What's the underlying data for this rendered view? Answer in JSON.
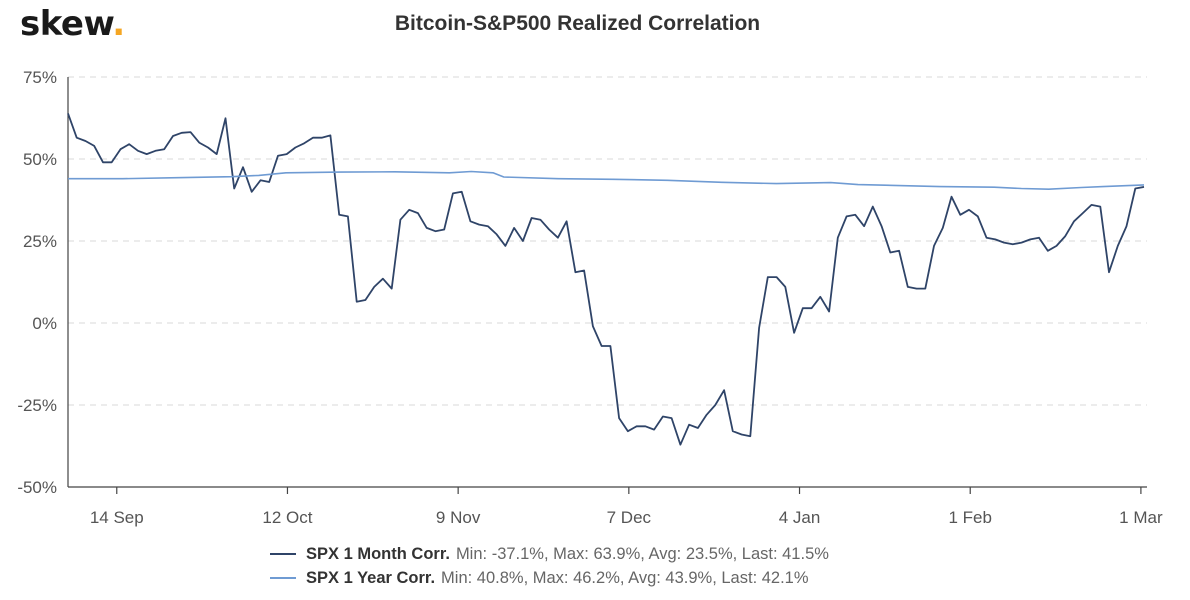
{
  "brand": {
    "logo_text": "skew",
    "logo_dot": "."
  },
  "colors": {
    "month_series": "#2f4468",
    "year_series": "#6f9bd3",
    "logo_dot": "#f5a623"
  },
  "chart_data": {
    "type": "line",
    "title": "Bitcoin-S&P500 Realized Correlation",
    "xlabel": "",
    "ylabel": "",
    "ylim": [
      -50,
      75
    ],
    "y_ticks": [
      -50,
      -25,
      0,
      25,
      50,
      75
    ],
    "y_tick_labels": [
      "-50%",
      "-25%",
      "0%",
      "25%",
      "50%",
      "75%"
    ],
    "x_tick_labels": [
      "14 Sep",
      "12 Oct",
      "9 Nov",
      "7 Dec",
      "4 Jan",
      "1 Feb",
      "1 Mar"
    ],
    "x_tick_index": [
      8,
      36,
      64,
      92,
      120,
      148,
      176
    ],
    "x_count": 178,
    "grid": true,
    "legend_position": "bottom",
    "series": [
      {
        "name": "SPX 1 Month Corr.",
        "stats": "Min: -37.1%, Max: 63.9%, Avg: 23.5%, Last: 41.5%",
        "points": [
          [
            0,
            63.9
          ],
          [
            2,
            56.5
          ],
          [
            4,
            55.5
          ],
          [
            6,
            54
          ],
          [
            8,
            49
          ],
          [
            10,
            49
          ],
          [
            12,
            53
          ],
          [
            14,
            54.5
          ],
          [
            16,
            52.5
          ],
          [
            18,
            51.5
          ],
          [
            20,
            52.5
          ],
          [
            22,
            53
          ],
          [
            24,
            57
          ],
          [
            26,
            58
          ],
          [
            28,
            58.2
          ],
          [
            30,
            55
          ],
          [
            32,
            53.5
          ],
          [
            34,
            51.5
          ],
          [
            36,
            62.4
          ],
          [
            38,
            41
          ],
          [
            40,
            47.5
          ],
          [
            42,
            40
          ],
          [
            44,
            43.5
          ],
          [
            46,
            43
          ],
          [
            48,
            51
          ],
          [
            50,
            51.5
          ],
          [
            52,
            53.5
          ],
          [
            54,
            54.8
          ],
          [
            56,
            56.5
          ],
          [
            58,
            56.5
          ],
          [
            60,
            57.2
          ],
          [
            62,
            33
          ],
          [
            64,
            32.5
          ],
          [
            66,
            6.5
          ],
          [
            68,
            7
          ],
          [
            70,
            11
          ],
          [
            72,
            13.5
          ],
          [
            74,
            10.5
          ],
          [
            76,
            31.5
          ],
          [
            78,
            34.5
          ],
          [
            80,
            33.5
          ],
          [
            82,
            29
          ],
          [
            84,
            28
          ],
          [
            86,
            28.5
          ],
          [
            88,
            39.5
          ],
          [
            90,
            40
          ],
          [
            92,
            31
          ],
          [
            94,
            30
          ],
          [
            96,
            29.5
          ],
          [
            98,
            27
          ],
          [
            100,
            23.5
          ],
          [
            102,
            29
          ],
          [
            104,
            25
          ],
          [
            106,
            32
          ],
          [
            108,
            31.5
          ],
          [
            110,
            28.5
          ],
          [
            112,
            26
          ],
          [
            114,
            31
          ],
          [
            116,
            15.5
          ],
          [
            118,
            16
          ],
          [
            120,
            -1
          ],
          [
            122,
            -7
          ],
          [
            124,
            -7
          ],
          [
            126,
            -29
          ],
          [
            128,
            -33
          ],
          [
            130,
            -31.5
          ],
          [
            132,
            -31.5
          ],
          [
            134,
            -32.5
          ],
          [
            136,
            -28.5
          ],
          [
            138,
            -29
          ],
          [
            140,
            -37.1
          ],
          [
            142,
            -31
          ],
          [
            144,
            -32
          ],
          [
            146,
            -28
          ],
          [
            148,
            -25
          ],
          [
            150,
            -20.5
          ],
          [
            152,
            -33
          ],
          [
            154,
            -34
          ],
          [
            156,
            -34.5
          ],
          [
            158,
            -1.5
          ],
          [
            160,
            14
          ],
          [
            162,
            14
          ],
          [
            164,
            11
          ],
          [
            166,
            -3
          ],
          [
            168,
            4.5
          ],
          [
            170,
            4.5
          ],
          [
            172,
            8
          ],
          [
            174,
            3.5
          ],
          [
            176,
            26
          ],
          [
            178,
            32.5
          ],
          [
            180,
            33
          ],
          [
            182,
            29.5
          ],
          [
            184,
            35.5
          ],
          [
            186,
            29.5
          ],
          [
            188,
            21.5
          ],
          [
            190,
            22
          ],
          [
            192,
            11
          ],
          [
            194,
            10.5
          ],
          [
            196,
            10.5
          ],
          [
            198,
            23.5
          ],
          [
            200,
            29
          ],
          [
            202,
            38.5
          ],
          [
            204,
            33
          ],
          [
            206,
            34.5
          ],
          [
            208,
            32.5
          ],
          [
            210,
            26
          ],
          [
            212,
            25.5
          ],
          [
            214,
            24.5
          ],
          [
            216,
            24
          ],
          [
            218,
            24.5
          ],
          [
            220,
            25.5
          ],
          [
            222,
            26
          ],
          [
            224,
            22
          ],
          [
            226,
            23.5
          ],
          [
            228,
            26.5
          ],
          [
            230,
            31
          ],
          [
            232,
            33.5
          ],
          [
            234,
            36
          ],
          [
            236,
            35.5
          ],
          [
            238,
            15.5
          ],
          [
            240,
            23.5
          ],
          [
            242,
            29.5
          ],
          [
            244,
            41
          ],
          [
            246,
            41.5
          ]
        ]
      },
      {
        "name": "SPX 1 Year Corr.",
        "stats": "Min: 40.8%, Max: 46.2%, Avg: 43.9%, Last: 42.1%",
        "points": [
          [
            0,
            44
          ],
          [
            20,
            44
          ],
          [
            40,
            44.3
          ],
          [
            60,
            44.6
          ],
          [
            70,
            45
          ],
          [
            80,
            45.8
          ],
          [
            100,
            46
          ],
          [
            120,
            46.1
          ],
          [
            140,
            45.8
          ],
          [
            148,
            46.2
          ],
          [
            156,
            45.8
          ],
          [
            160,
            44.5
          ],
          [
            180,
            44
          ],
          [
            200,
            43.8
          ],
          [
            220,
            43.5
          ],
          [
            230,
            43.2
          ],
          [
            240,
            42.9
          ],
          [
            260,
            42.5
          ],
          [
            280,
            42.8
          ],
          [
            290,
            42.2
          ],
          [
            300,
            42
          ],
          [
            320,
            41.6
          ],
          [
            340,
            41.4
          ],
          [
            350,
            41
          ],
          [
            360,
            40.8
          ],
          [
            372,
            41.3
          ],
          [
            380,
            41.6
          ],
          [
            395,
            42.1
          ]
        ]
      }
    ]
  }
}
